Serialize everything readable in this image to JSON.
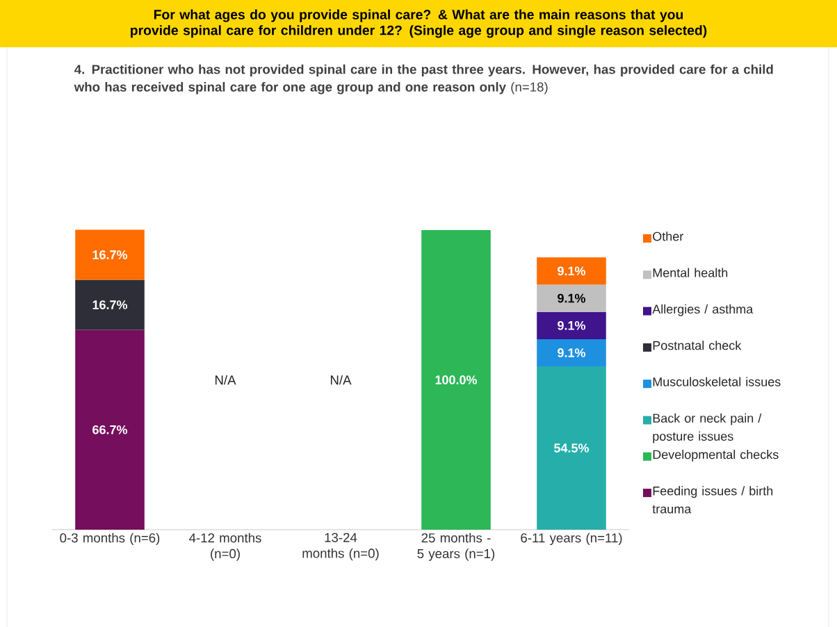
{
  "chart_data": {
    "type": "bar",
    "stacked": true,
    "title": "For what ages do you provide spinal care? & What are the main reasons that you provide spinal care for children under 12? (Single age group and single reason selected)",
    "subtitle": "**4. Practitioner who has not provided spinal care in the past three years. However, has provided care for a child who has received spinal care for one age group and one reason only** (n=18)",
    "categories": [
      "0-3 months (n=6)",
      "4-12 months (n=0)",
      "13-24 months (n=0)",
      "25 months - 5 years (n=1)",
      "6-11 years (n=11)"
    ],
    "series": [
      {
        "name": "Feeding issues / birth trauma",
        "color": "#750e5c",
        "values": [
          66.7,
          null,
          null,
          null,
          null
        ],
        "value_labels": [
          "66.7%",
          null,
          null,
          null,
          null
        ]
      },
      {
        "name": "Developmental checks",
        "color": "#2db757",
        "values": [
          null,
          null,
          null,
          100.0,
          null
        ],
        "value_labels": [
          null,
          null,
          null,
          "100.0%",
          null
        ]
      },
      {
        "name": "Back or neck pain / posture issues",
        "color": "#26aeaa",
        "values": [
          null,
          null,
          null,
          null,
          54.5
        ],
        "value_labels": [
          null,
          null,
          null,
          null,
          "54.5%"
        ]
      },
      {
        "name": "Musculoskeletal issues",
        "color": "#1e90e0",
        "values": [
          null,
          null,
          null,
          null,
          9.1
        ],
        "value_labels": [
          null,
          null,
          null,
          null,
          "9.1%"
        ]
      },
      {
        "name": "Postnatal check",
        "color": "#2e2e38",
        "values": [
          16.7,
          null,
          null,
          null,
          null
        ],
        "value_labels": [
          "16.7%",
          null,
          null,
          null,
          null
        ]
      },
      {
        "name": "Allergies / asthma",
        "color": "#40148c",
        "values": [
          null,
          null,
          null,
          null,
          9.1
        ],
        "value_labels": [
          null,
          null,
          null,
          null,
          "9.1%"
        ]
      },
      {
        "name": "Mental health",
        "color": "#c0c0c0",
        "values": [
          null,
          null,
          null,
          null,
          9.1
        ],
        "value_labels": [
          null,
          null,
          null,
          null,
          "9.1%"
        ]
      },
      {
        "name": "Other",
        "color": "#ff6d00",
        "values": [
          16.7,
          null,
          null,
          null,
          9.1
        ],
        "value_labels": [
          "16.7%",
          null,
          null,
          null,
          "9.1%"
        ]
      }
    ],
    "annotations": [
      "N/A",
      "N/A"
    ],
    "legend": "right"
  }
}
